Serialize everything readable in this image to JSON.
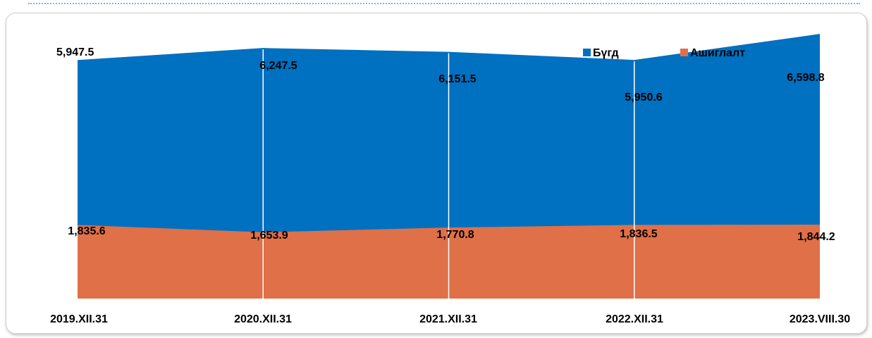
{
  "chart_data": {
    "type": "area",
    "categories": [
      "2019.XII.31",
      "2020.XII.31",
      "2021.XII.31",
      "2022.XII.31",
      "2023.VIII.30"
    ],
    "series": [
      {
        "name": "Бүгд",
        "values": [
          5947.5,
          6247.5,
          6151.5,
          5950.6,
          6598.8
        ],
        "labels": [
          "5,947.5",
          "6,247.5",
          "6,151.5",
          "5,950.6",
          "6,598.8"
        ],
        "color": "#0070c0"
      },
      {
        "name": "Ашиглалт",
        "values": [
          1835.6,
          1653.9,
          1770.8,
          1836.5,
          1844.2
        ],
        "labels": [
          "1,835.6",
          "1,653.9",
          "1,770.8",
          "1,836.5",
          "1,844.2"
        ],
        "color": "#e07048"
      }
    ],
    "ylim": [
      0,
      6900
    ],
    "grid": "vertical-white-lines",
    "legend_position": "top-right"
  }
}
